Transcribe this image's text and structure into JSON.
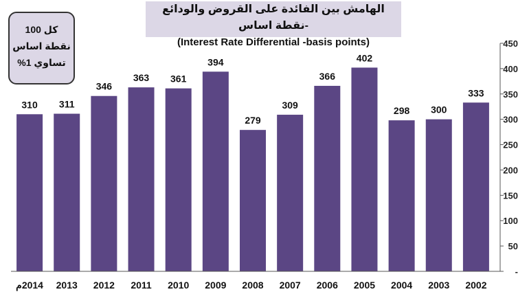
{
  "title_ar": "الهامش بين الفائدة على القروض والودائع -نقطة اساس",
  "title_en": "(Interest Rate Differential -basis points)",
  "note": [
    "كل 100",
    "نقطة اساس",
    "تساوي 1%"
  ],
  "colors": {
    "bar": "#5b4684",
    "title_bg": "#dcd7e6"
  },
  "chart_data": {
    "type": "bar",
    "categories": [
      "2014م",
      "2013",
      "2012",
      "2011",
      "2010",
      "2009",
      "2008",
      "2007",
      "2006",
      "2005",
      "2004",
      "2003",
      "2002"
    ],
    "values": [
      310,
      311,
      346,
      363,
      361,
      394,
      279,
      309,
      366,
      402,
      298,
      300,
      333
    ],
    "ylim": [
      0,
      450
    ],
    "yticks": [
      0,
      50,
      100,
      150,
      200,
      250,
      300,
      350,
      400,
      450
    ],
    "ytick_labels": [
      "-",
      "50",
      "100",
      "150",
      "200",
      "250",
      "300",
      "350",
      "400",
      "450"
    ],
    "y_axis_side": "right",
    "grid": false
  }
}
